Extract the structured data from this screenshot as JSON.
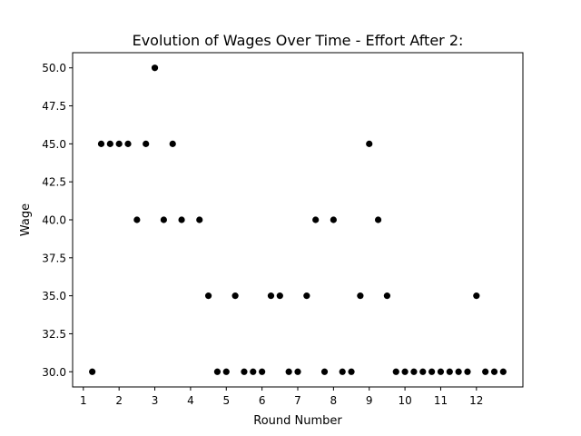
{
  "chart_data": {
    "type": "scatter",
    "title": "Evolution of Wages Over Time - Effort After 2:",
    "xlabel": "Round Number",
    "ylabel": "Wage",
    "xlim": [
      0.7,
      13.3
    ],
    "ylim": [
      29.0,
      51.0
    ],
    "xticks": [
      1,
      2,
      3,
      4,
      5,
      6,
      7,
      8,
      9,
      10,
      11,
      12
    ],
    "yticks": [
      30.0,
      32.5,
      35.0,
      37.5,
      40.0,
      42.5,
      45.0,
      47.5,
      50.0
    ],
    "grid": false,
    "marker_color": "#000000",
    "x": [
      1.25,
      1.5,
      1.75,
      2.0,
      2.25,
      2.5,
      2.75,
      3.0,
      3.25,
      3.5,
      3.75,
      4.25,
      4.5,
      4.75,
      5.0,
      5.25,
      5.5,
      5.75,
      6.0,
      6.25,
      6.5,
      6.75,
      7.0,
      7.25,
      7.5,
      7.75,
      8.0,
      8.25,
      8.5,
      8.75,
      9.0,
      9.25,
      9.5,
      9.75,
      10.0,
      10.25,
      10.5,
      10.75,
      11.0,
      11.25,
      11.5,
      11.75,
      12.0,
      12.25,
      12.5,
      12.75
    ],
    "y": [
      30,
      45,
      45,
      45,
      45,
      40,
      45,
      50,
      40,
      45,
      40,
      40,
      35,
      30,
      30,
      35,
      30,
      30,
      30,
      35,
      35,
      30,
      30,
      35,
      40,
      30,
      40,
      30,
      30,
      35,
      45,
      40,
      35,
      30,
      30,
      30,
      30,
      30,
      30,
      30,
      30,
      30,
      35,
      30,
      30,
      30
    ]
  }
}
